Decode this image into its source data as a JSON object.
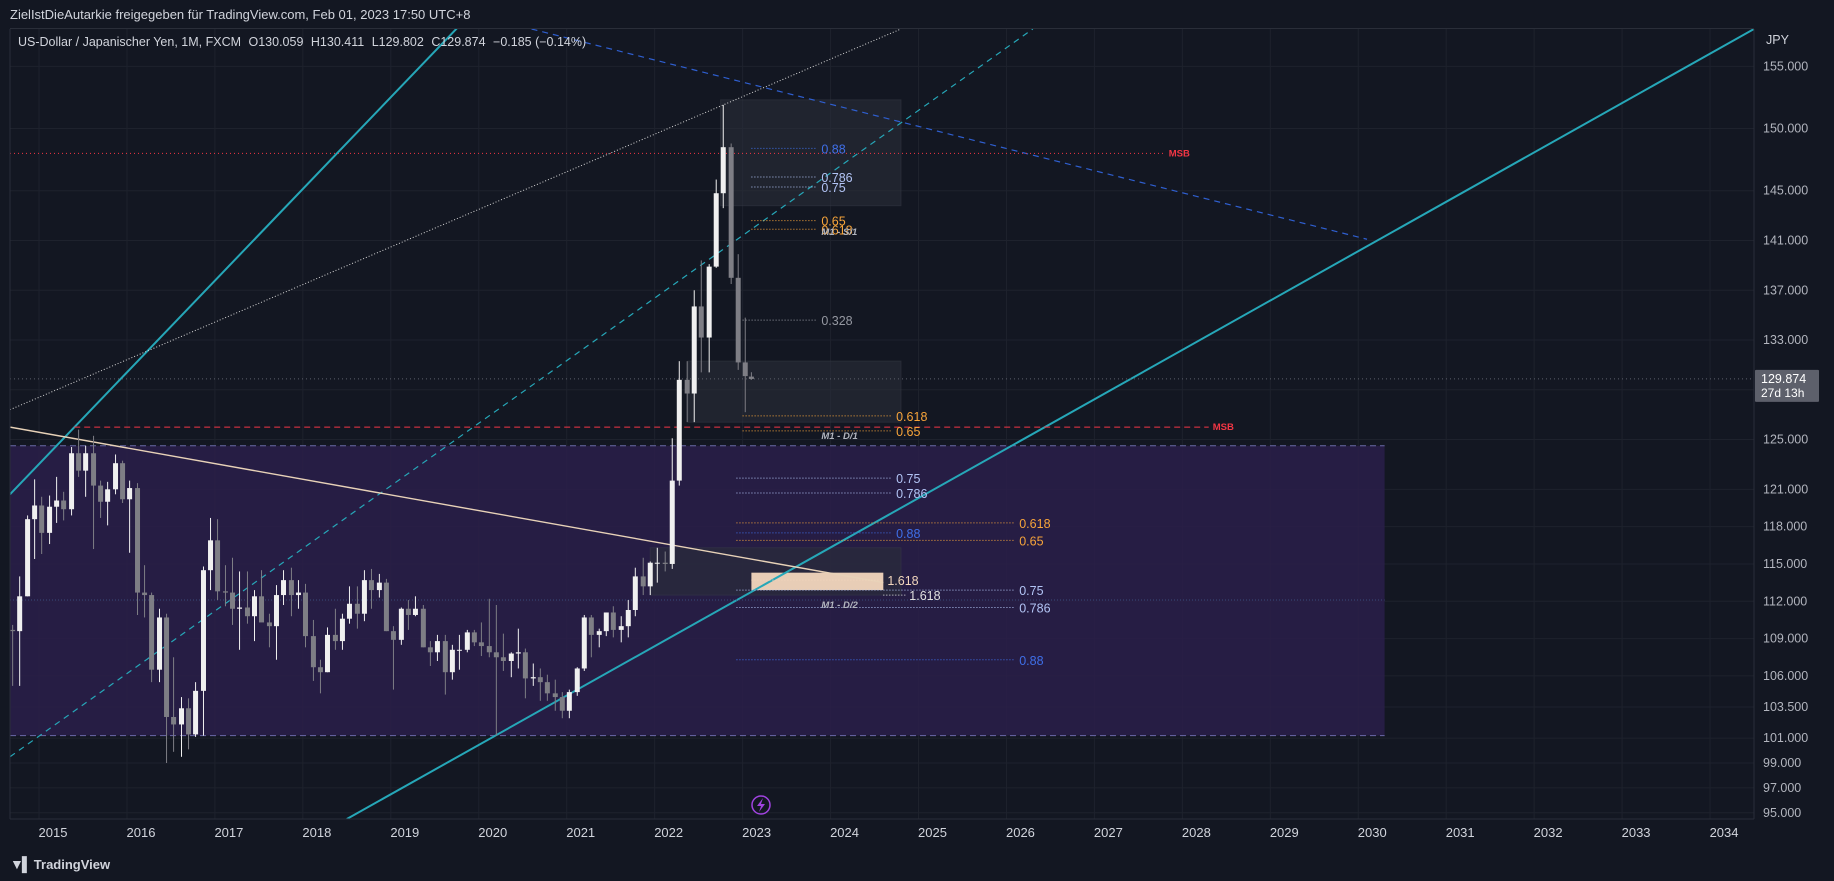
{
  "header": {
    "caption": "ZielIstDieAutarkie freigegeben für TradingView.com, Feb 01, 2023 17:50 UTC+8"
  },
  "legend": {
    "symbol": "US-Dollar / Japanischer Yen, 1M, FXCM",
    "open": "O130.059",
    "high": "H130.411",
    "low": "L129.802",
    "close": "C129.874",
    "change": "−0.185 (−0.14%)"
  },
  "footer": {
    "brand": "TradingView",
    "brand_icon": "tradingview-logo-icon"
  },
  "colors": {
    "background": "#131722",
    "grid": "#1e222d",
    "candle_up": "#f0f0f0",
    "candle_down": "#7e7e85",
    "channel": "#26a7b8",
    "zone": "#2a1f4a",
    "fib_blue": "#3f6fe8",
    "fib_orange": "#f7a43a",
    "fib_light": "#b2c4f5",
    "msb": "#f23645",
    "trend": "#e8d2b8"
  },
  "chart_data": {
    "type": "candlestick",
    "currency_label": "JPY",
    "ylim": [
      94.5,
      158
    ],
    "xlim": [
      2014.67,
      2034.5
    ],
    "y_ticks": [
      "95.000",
      "97.000",
      "99.000",
      "101.000",
      "103.500",
      "106.000",
      "109.000",
      "112.000",
      "115.000",
      "118.000",
      "121.000",
      "125.000",
      "129.000",
      "133.000",
      "137.000",
      "141.000",
      "145.000",
      "150.000",
      "155.000"
    ],
    "x_ticks": [
      "2015",
      "2016",
      "2017",
      "2018",
      "2019",
      "2020",
      "2021",
      "2022",
      "2023",
      "2024",
      "2025",
      "2026",
      "2027",
      "2028",
      "2029",
      "2030",
      "2031",
      "2032",
      "2033",
      "2034"
    ],
    "last_price": {
      "value": 129.874,
      "label": "129.874",
      "countdown": "27d 13h"
    },
    "candles_ohlc": [
      [
        2014.7,
        109.7,
        110.1,
        105.2,
        109.6
      ],
      [
        2014.78,
        109.6,
        114.0,
        105.2,
        112.4
      ],
      [
        2014.87,
        112.4,
        118.9,
        112.4,
        118.6
      ],
      [
        2014.95,
        118.6,
        121.8,
        115.4,
        119.7
      ],
      [
        2015.03,
        119.7,
        120.4,
        115.8,
        117.5
      ],
      [
        2015.12,
        117.5,
        120.5,
        116.6,
        119.6
      ],
      [
        2015.2,
        119.6,
        122.0,
        118.3,
        120.1
      ],
      [
        2015.28,
        120.1,
        120.8,
        118.5,
        119.4
      ],
      [
        2015.37,
        119.4,
        124.4,
        118.9,
        123.9
      ],
      [
        2015.45,
        123.9,
        125.8,
        122.0,
        122.5
      ],
      [
        2015.53,
        122.5,
        124.5,
        120.4,
        123.9
      ],
      [
        2015.62,
        123.9,
        125.3,
        116.2,
        121.3
      ],
      [
        2015.7,
        121.3,
        121.7,
        118.7,
        120.0
      ],
      [
        2015.78,
        120.0,
        121.6,
        118.1,
        121.0
      ],
      [
        2015.87,
        121.0,
        123.8,
        120.6,
        123.1
      ],
      [
        2015.95,
        123.1,
        123.3,
        119.9,
        120.2
      ],
      [
        2016.03,
        120.2,
        121.7,
        115.9,
        121.1
      ],
      [
        2016.12,
        121.1,
        121.5,
        110.9,
        112.7
      ],
      [
        2016.2,
        112.7,
        114.9,
        110.7,
        112.5
      ],
      [
        2016.28,
        112.5,
        112.7,
        105.5,
        106.5
      ],
      [
        2016.37,
        106.5,
        111.4,
        105.5,
        110.7
      ],
      [
        2016.45,
        110.7,
        111.0,
        99.0,
        102.7
      ],
      [
        2016.53,
        102.7,
        107.5,
        99.9,
        102.1
      ],
      [
        2016.62,
        102.1,
        104.3,
        99.5,
        103.4
      ],
      [
        2016.7,
        103.4,
        104.2,
        100.1,
        101.3
      ],
      [
        2016.78,
        101.3,
        105.5,
        101.1,
        104.8
      ],
      [
        2016.87,
        104.8,
        114.8,
        101.2,
        114.5
      ],
      [
        2016.95,
        114.5,
        118.7,
        112.9,
        116.9
      ],
      [
        2017.03,
        116.9,
        118.6,
        112.1,
        112.8
      ],
      [
        2017.12,
        112.8,
        114.9,
        111.6,
        112.7
      ],
      [
        2017.2,
        112.7,
        115.5,
        110.1,
        111.4
      ],
      [
        2017.28,
        111.4,
        114.4,
        108.1,
        111.5
      ],
      [
        2017.37,
        111.5,
        114.4,
        110.2,
        110.8
      ],
      [
        2017.45,
        110.8,
        112.9,
        108.8,
        112.4
      ],
      [
        2017.53,
        112.4,
        114.5,
        110.6,
        110.3
      ],
      [
        2017.62,
        110.3,
        111.0,
        108.3,
        110.0
      ],
      [
        2017.7,
        110.0,
        113.3,
        107.3,
        112.5
      ],
      [
        2017.78,
        112.5,
        114.5,
        111.7,
        113.7
      ],
      [
        2017.87,
        113.7,
        114.7,
        110.8,
        112.5
      ],
      [
        2017.95,
        112.5,
        113.7,
        111.4,
        112.7
      ],
      [
        2018.03,
        112.7,
        113.4,
        108.3,
        109.2
      ],
      [
        2018.12,
        109.2,
        110.5,
        105.6,
        106.7
      ],
      [
        2018.2,
        106.7,
        107.3,
        104.6,
        106.3
      ],
      [
        2018.28,
        106.3,
        109.9,
        106.3,
        109.3
      ],
      [
        2018.37,
        109.3,
        111.4,
        108.1,
        108.8
      ],
      [
        2018.45,
        108.8,
        111.0,
        108.1,
        110.6
      ],
      [
        2018.53,
        110.6,
        113.2,
        110.2,
        111.8
      ],
      [
        2018.62,
        111.8,
        113.2,
        109.8,
        111.0
      ],
      [
        2018.7,
        111.0,
        114.5,
        110.4,
        113.7
      ],
      [
        2018.78,
        113.7,
        114.6,
        111.4,
        112.9
      ],
      [
        2018.87,
        112.9,
        114.2,
        112.3,
        113.5
      ],
      [
        2018.95,
        113.5,
        113.8,
        109.6,
        109.6
      ],
      [
        2019.03,
        109.6,
        110.0,
        104.9,
        108.9
      ],
      [
        2019.12,
        108.9,
        111.5,
        108.5,
        111.4
      ],
      [
        2019.2,
        111.4,
        112.1,
        109.7,
        110.9
      ],
      [
        2019.28,
        110.9,
        112.4,
        110.8,
        111.4
      ],
      [
        2019.37,
        111.4,
        111.7,
        108.3,
        108.3
      ],
      [
        2019.45,
        108.3,
        108.8,
        106.8,
        107.9
      ],
      [
        2019.53,
        107.9,
        109.3,
        107.2,
        108.8
      ],
      [
        2019.62,
        108.8,
        109.3,
        104.5,
        106.3
      ],
      [
        2019.7,
        106.3,
        108.5,
        105.7,
        108.1
      ],
      [
        2019.78,
        108.1,
        109.3,
        106.5,
        108.1
      ],
      [
        2019.87,
        108.1,
        109.7,
        107.9,
        109.5
      ],
      [
        2019.95,
        109.5,
        109.7,
        108.4,
        108.7
      ],
      [
        2020.03,
        108.7,
        110.3,
        107.6,
        108.4
      ],
      [
        2020.12,
        108.4,
        112.2,
        107.5,
        107.9
      ],
      [
        2020.2,
        107.9,
        111.7,
        101.2,
        107.5
      ],
      [
        2020.28,
        107.5,
        109.4,
        106.4,
        107.2
      ],
      [
        2020.37,
        107.2,
        107.9,
        105.9,
        107.8
      ],
      [
        2020.45,
        107.8,
        109.8,
        106.6,
        107.9
      ],
      [
        2020.53,
        107.9,
        108.2,
        104.2,
        105.8
      ],
      [
        2020.62,
        105.8,
        107.0,
        105.2,
        105.9
      ],
      [
        2020.7,
        105.9,
        106.6,
        104.0,
        105.5
      ],
      [
        2020.78,
        105.5,
        106.1,
        104.0,
        104.6
      ],
      [
        2020.87,
        104.6,
        105.7,
        103.2,
        104.3
      ],
      [
        2020.95,
        104.3,
        104.7,
        102.6,
        103.2
      ],
      [
        2021.03,
        103.2,
        104.9,
        102.6,
        104.7
      ],
      [
        2021.12,
        104.7,
        106.7,
        104.4,
        106.6
      ],
      [
        2021.2,
        106.6,
        110.9,
        106.4,
        110.7
      ],
      [
        2021.28,
        110.7,
        110.9,
        107.5,
        109.3
      ],
      [
        2021.37,
        109.3,
        109.8,
        108.3,
        109.6
      ],
      [
        2021.45,
        109.6,
        111.1,
        109.2,
        111.1
      ],
      [
        2021.53,
        111.1,
        111.6,
        109.1,
        109.7
      ],
      [
        2021.62,
        109.7,
        110.8,
        108.7,
        110.0
      ],
      [
        2021.7,
        110.0,
        112.1,
        109.1,
        111.3
      ],
      [
        2021.78,
        111.3,
        114.7,
        110.8,
        114.0
      ],
      [
        2021.87,
        114.0,
        115.5,
        112.5,
        113.2
      ],
      [
        2021.95,
        113.2,
        115.2,
        112.5,
        115.1
      ],
      [
        2022.03,
        115.1,
        116.3,
        113.5,
        115.1
      ],
      [
        2022.12,
        115.1,
        116.0,
        114.4,
        115.0
      ],
      [
        2022.2,
        115.0,
        125.1,
        114.6,
        121.7
      ],
      [
        2022.28,
        121.7,
        131.3,
        121.3,
        129.8
      ],
      [
        2022.37,
        129.8,
        131.3,
        126.4,
        128.7
      ],
      [
        2022.45,
        128.7,
        137.0,
        126.4,
        135.7
      ],
      [
        2022.53,
        135.7,
        139.4,
        130.4,
        133.2
      ],
      [
        2022.62,
        133.2,
        139.1,
        130.4,
        138.9
      ],
      [
        2022.7,
        138.9,
        145.9,
        138.8,
        144.8
      ],
      [
        2022.78,
        144.8,
        151.9,
        143.6,
        148.5
      ],
      [
        2022.87,
        148.5,
        148.8,
        137.5,
        138.0
      ],
      [
        2022.95,
        138.0,
        139.9,
        130.6,
        131.2
      ],
      [
        2023.03,
        131.2,
        134.8,
        127.2,
        130.1
      ],
      [
        2023.1,
        130.06,
        130.41,
        129.8,
        129.87
      ]
    ],
    "levels": [
      {
        "label": "0.88",
        "value": 148.4
      },
      {
        "label": "0.786",
        "value": 146.1
      },
      {
        "label": "0.75",
        "value": 145.3
      },
      {
        "label": "0.65",
        "value": 142.6
      },
      {
        "label": "0.618",
        "value": 141.9
      },
      {
        "label": "0.328",
        "value": 134.6
      },
      {
        "label": "0.618",
        "value": 126.9
      },
      {
        "label": "0.65",
        "value": 125.7
      },
      {
        "label": "0.75",
        "value": 121.9
      },
      {
        "label": "0.786",
        "value": 120.7
      },
      {
        "label": "0.618",
        "value": 118.3
      },
      {
        "label": "0.65",
        "value": 116.9
      },
      {
        "label": "0.88",
        "value": 117.5
      },
      {
        "label": "1.618",
        "value": 113.7
      },
      {
        "label": "1.618",
        "value": 112.5
      },
      {
        "label": "0.75",
        "value": 112.9
      },
      {
        "label": "0.786",
        "value": 111.5
      },
      {
        "label": "0.88",
        "value": 107.3
      }
    ],
    "annotations": [
      "MSB",
      "MSB",
      "M1 - S/1",
      "M1 - D/1",
      "M1 - D/2"
    ]
  }
}
